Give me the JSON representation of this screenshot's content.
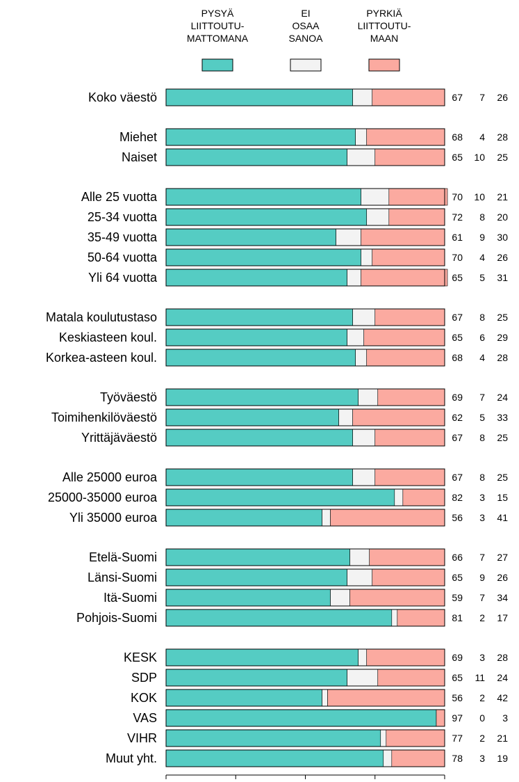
{
  "chart_data": {
    "type": "bar",
    "stacked": true,
    "orientation": "horizontal",
    "legend_position": "top",
    "xlim": [
      0,
      100
    ],
    "xticks": [
      "0",
      "25",
      "50",
      "75",
      "100"
    ],
    "series": [
      {
        "name_lines": [
          "PYSYÄ",
          "LIITTOUTU-",
          "MATTOMANA"
        ],
        "color": "#55CCC3"
      },
      {
        "name_lines": [
          "EI",
          "OSAA",
          "SANOA"
        ],
        "color": "#F3F3F3"
      },
      {
        "name_lines": [
          "PYRKIÄ",
          "LIITTOUTU-",
          "MAAN"
        ],
        "color": "#FBAAA0"
      }
    ],
    "groups": [
      [
        {
          "label": "Koko väestö",
          "values": [
            67,
            7,
            26
          ]
        }
      ],
      [
        {
          "label": "Miehet",
          "values": [
            68,
            4,
            28
          ]
        },
        {
          "label": "Naiset",
          "values": [
            65,
            10,
            25
          ]
        }
      ],
      [
        {
          "label": "Alle 25 vuotta",
          "values": [
            70,
            10,
            21
          ]
        },
        {
          "label": "25-34 vuotta",
          "values": [
            72,
            8,
            20
          ]
        },
        {
          "label": "35-49 vuotta",
          "values": [
            61,
            9,
            30
          ]
        },
        {
          "label": "50-64 vuotta",
          "values": [
            70,
            4,
            26
          ]
        },
        {
          "label": "Yli 64 vuotta",
          "values": [
            65,
            5,
            31
          ]
        }
      ],
      [
        {
          "label": "Matala koulutustaso",
          "values": [
            67,
            8,
            25
          ]
        },
        {
          "label": "Keskiasteen koul.",
          "values": [
            65,
            6,
            29
          ]
        },
        {
          "label": "Korkea-asteen koul.",
          "values": [
            68,
            4,
            28
          ]
        }
      ],
      [
        {
          "label": "Työväestö",
          "values": [
            69,
            7,
            24
          ]
        },
        {
          "label": "Toimihenkilöväestö",
          "values": [
            62,
            5,
            33
          ]
        },
        {
          "label": "Yrittäjäväestö",
          "values": [
            67,
            8,
            25
          ]
        }
      ],
      [
        {
          "label": "Alle 25000 euroa",
          "values": [
            67,
            8,
            25
          ]
        },
        {
          "label": "25000-35000 euroa",
          "values": [
            82,
            3,
            15
          ]
        },
        {
          "label": "Yli 35000 euroa",
          "values": [
            56,
            3,
            41
          ]
        }
      ],
      [
        {
          "label": "Etelä-Suomi",
          "values": [
            66,
            7,
            27
          ]
        },
        {
          "label": "Länsi-Suomi",
          "values": [
            65,
            9,
            26
          ]
        },
        {
          "label": "Itä-Suomi",
          "values": [
            59,
            7,
            34
          ]
        },
        {
          "label": "Pohjois-Suomi",
          "values": [
            81,
            2,
            17
          ]
        }
      ],
      [
        {
          "label": "KESK",
          "values": [
            69,
            3,
            28
          ]
        },
        {
          "label": "SDP",
          "values": [
            65,
            11,
            24
          ]
        },
        {
          "label": "KOK",
          "values": [
            56,
            2,
            42
          ]
        },
        {
          "label": "VAS",
          "values": [
            97,
            0,
            3
          ]
        },
        {
          "label": "VIHR",
          "values": [
            77,
            2,
            21
          ]
        },
        {
          "label": "Muut yht.",
          "values": [
            78,
            3,
            19
          ]
        }
      ]
    ]
  }
}
